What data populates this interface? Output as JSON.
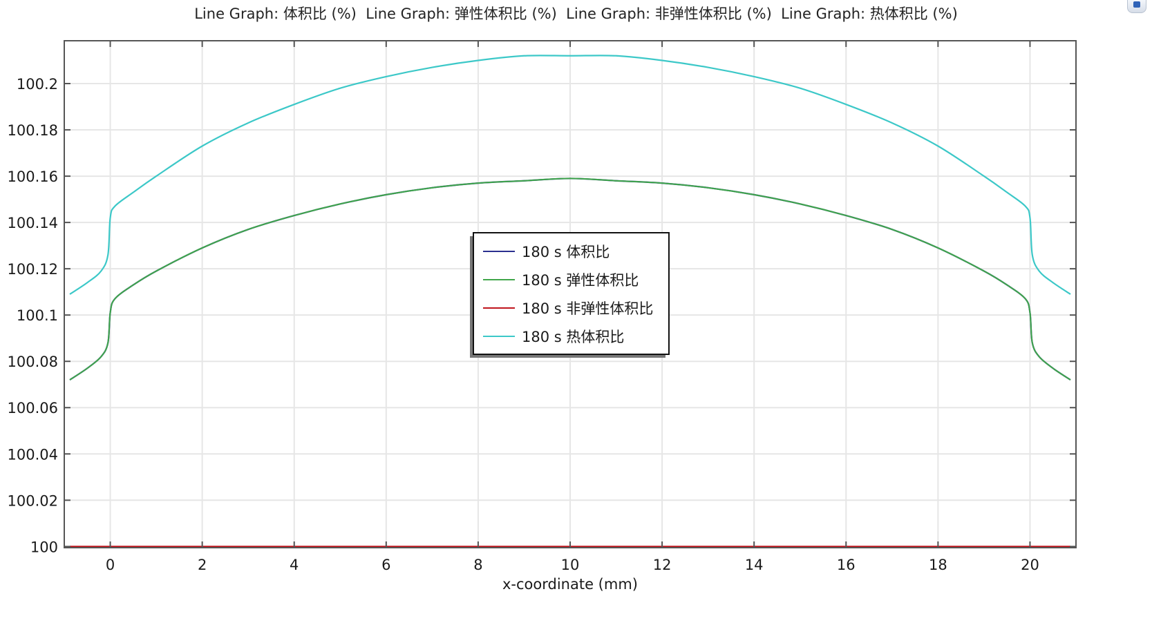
{
  "title": "Line Graph: 体积比 (%)  Line Graph: 弹性体积比 (%)  Line Graph: 非弹性体积比 (%)  Line Graph: 热体积比 (%)",
  "corner_icon": "window-icon",
  "chart_data": {
    "type": "line",
    "title": "Line Graph: 体积比 (%)  Line Graph: 弹性体积比 (%)  Line Graph: 非弹性体积比 (%)  Line Graph: 热体积比 (%)",
    "xlabel": "x-coordinate (mm)",
    "ylabel": "",
    "xlim": [
      -1,
      21
    ],
    "ylim": [
      99.9995,
      100.2185
    ],
    "grid": true,
    "legend_position": "center",
    "x_ticks": [
      0,
      2,
      4,
      6,
      8,
      10,
      12,
      14,
      16,
      18,
      20
    ],
    "x_tick_labels": [
      "0",
      "2",
      "4",
      "6",
      "8",
      "10",
      "12",
      "14",
      "16",
      "18",
      "20"
    ],
    "y_ticks": [
      100,
      100.02,
      100.04,
      100.06,
      100.08,
      100.1,
      100.12,
      100.14,
      100.16,
      100.18,
      100.2
    ],
    "y_tick_labels": [
      "100",
      "100.02",
      "100.04",
      "100.06",
      "100.08",
      "100.1",
      "100.12",
      "100.14",
      "100.16",
      "100.18",
      "100.2"
    ],
    "series": [
      {
        "name": "180 s 体积比",
        "color": "#2a2f8f",
        "x": [
          -0.88,
          -0.5,
          -0.2,
          -0.05,
          0.0,
          0.1,
          0.5,
          1,
          2,
          3,
          4,
          5,
          6,
          7,
          8,
          9,
          10,
          11,
          12,
          13,
          14,
          15,
          16,
          17,
          18,
          19,
          19.5,
          19.9,
          20.0,
          20.05,
          20.2,
          20.5,
          20.88
        ],
        "y": [
          100.072,
          100.077,
          100.082,
          100.088,
          100.101,
          100.107,
          100.113,
          100.119,
          100.129,
          100.137,
          100.143,
          100.148,
          100.152,
          100.155,
          100.157,
          100.158,
          100.159,
          100.158,
          100.157,
          100.155,
          100.152,
          100.148,
          100.143,
          100.137,
          100.129,
          100.119,
          100.113,
          100.107,
          100.101,
          100.088,
          100.082,
          100.077,
          100.072
        ]
      },
      {
        "name": "180 s 弹性体积比",
        "color": "#3fa64a",
        "x": [
          -0.88,
          -0.5,
          -0.2,
          -0.05,
          0.0,
          0.1,
          0.5,
          1,
          2,
          3,
          4,
          5,
          6,
          7,
          8,
          9,
          10,
          11,
          12,
          13,
          14,
          15,
          16,
          17,
          18,
          19,
          19.5,
          19.9,
          20.0,
          20.05,
          20.2,
          20.5,
          20.88
        ],
        "y": [
          100.072,
          100.077,
          100.082,
          100.088,
          100.101,
          100.107,
          100.113,
          100.119,
          100.129,
          100.137,
          100.143,
          100.148,
          100.152,
          100.155,
          100.157,
          100.158,
          100.159,
          100.158,
          100.157,
          100.155,
          100.152,
          100.148,
          100.143,
          100.137,
          100.129,
          100.119,
          100.113,
          100.107,
          100.101,
          100.088,
          100.082,
          100.077,
          100.072
        ]
      },
      {
        "name": "180 s 非弹性体积比",
        "color": "#c0141c",
        "x": [
          -0.88,
          20.88
        ],
        "y": [
          100.0,
          100.0
        ]
      },
      {
        "name": "180 s 热体积比",
        "color": "#3cc8c8",
        "x": [
          -0.88,
          -0.5,
          -0.2,
          -0.05,
          0.0,
          0.1,
          0.5,
          1,
          2,
          3,
          4,
          5,
          6,
          7,
          8,
          9,
          10,
          11,
          12,
          13,
          14,
          15,
          16,
          17,
          18,
          19,
          19.5,
          19.9,
          20.0,
          20.05,
          20.2,
          20.5,
          20.88
        ],
        "y": [
          100.109,
          100.114,
          100.119,
          100.126,
          100.142,
          100.147,
          100.153,
          100.16,
          100.173,
          100.183,
          100.191,
          100.198,
          100.203,
          100.207,
          100.21,
          100.212,
          100.212,
          100.212,
          100.21,
          100.207,
          100.203,
          100.198,
          100.191,
          100.183,
          100.173,
          100.16,
          100.153,
          100.147,
          100.142,
          100.126,
          100.119,
          100.114,
          100.109
        ]
      }
    ]
  }
}
